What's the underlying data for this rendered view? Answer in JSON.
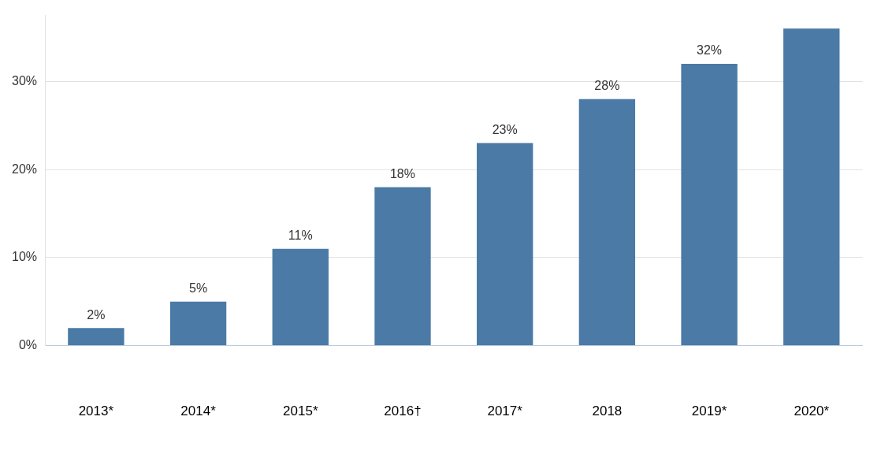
{
  "chart_data": {
    "type": "bar",
    "categories": [
      "2013*",
      "2014*",
      "2015*",
      "2016†",
      "2017*",
      "2018",
      "2019*",
      "2020*"
    ],
    "values": [
      2,
      5,
      11,
      18,
      23,
      28,
      32,
      36
    ],
    "value_labels": [
      "2%",
      "5%",
      "11%",
      "18%",
      "23%",
      "28%",
      "32%",
      null
    ],
    "color": "#4a7aa5",
    "ylim": [
      0,
      37.5
    ],
    "yticks": [
      {
        "value": 0,
        "label": "0%"
      },
      {
        "value": 10,
        "label": "10%"
      },
      {
        "value": 20,
        "label": "20%"
      },
      {
        "value": 30,
        "label": "30%"
      }
    ],
    "grid": "y",
    "legend": false
  }
}
